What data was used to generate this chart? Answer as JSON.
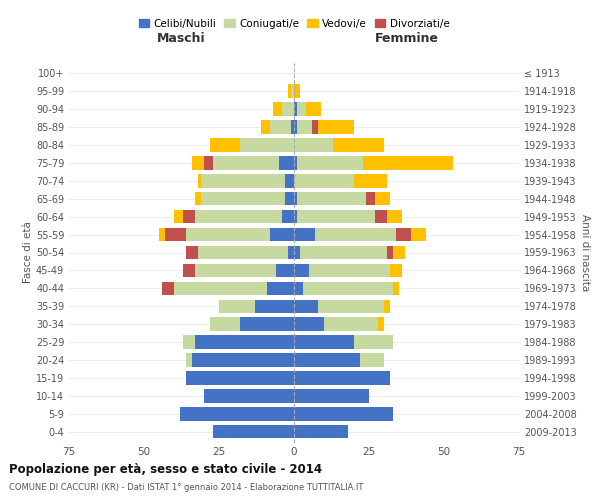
{
  "age_groups": [
    "0-4",
    "5-9",
    "10-14",
    "15-19",
    "20-24",
    "25-29",
    "30-34",
    "35-39",
    "40-44",
    "45-49",
    "50-54",
    "55-59",
    "60-64",
    "65-69",
    "70-74",
    "75-79",
    "80-84",
    "85-89",
    "90-94",
    "95-99",
    "100+"
  ],
  "birth_years": [
    "2009-2013",
    "2004-2008",
    "1999-2003",
    "1994-1998",
    "1989-1993",
    "1984-1988",
    "1979-1983",
    "1974-1978",
    "1969-1973",
    "1964-1968",
    "1959-1963",
    "1954-1958",
    "1949-1953",
    "1944-1948",
    "1939-1943",
    "1934-1938",
    "1929-1933",
    "1924-1928",
    "1919-1923",
    "1914-1918",
    "≤ 1913"
  ],
  "maschi": {
    "celibi": [
      27,
      38,
      30,
      36,
      34,
      33,
      18,
      13,
      9,
      6,
      2,
      8,
      4,
      3,
      3,
      5,
      0,
      1,
      0,
      0,
      0
    ],
    "coniugati": [
      0,
      0,
      0,
      0,
      2,
      4,
      10,
      12,
      31,
      27,
      30,
      28,
      29,
      28,
      28,
      22,
      18,
      7,
      4,
      1,
      0
    ],
    "vedovi": [
      0,
      0,
      0,
      0,
      0,
      0,
      0,
      0,
      0,
      0,
      0,
      2,
      3,
      2,
      1,
      4,
      10,
      3,
      3,
      1,
      0
    ],
    "divorziati": [
      0,
      0,
      0,
      0,
      0,
      0,
      0,
      0,
      4,
      4,
      4,
      7,
      4,
      0,
      0,
      3,
      0,
      0,
      0,
      0,
      0
    ]
  },
  "femmine": {
    "nubili": [
      18,
      33,
      25,
      32,
      22,
      20,
      10,
      8,
      3,
      5,
      2,
      7,
      1,
      1,
      0,
      1,
      0,
      1,
      1,
      0,
      0
    ],
    "coniugate": [
      0,
      0,
      0,
      0,
      8,
      13,
      18,
      22,
      30,
      27,
      29,
      27,
      26,
      23,
      20,
      22,
      13,
      5,
      3,
      0,
      0
    ],
    "vedove": [
      0,
      0,
      0,
      0,
      0,
      0,
      2,
      2,
      2,
      4,
      4,
      5,
      5,
      5,
      11,
      30,
      17,
      12,
      5,
      2,
      0
    ],
    "divorziate": [
      0,
      0,
      0,
      0,
      0,
      0,
      0,
      0,
      0,
      0,
      2,
      5,
      4,
      3,
      0,
      0,
      0,
      2,
      0,
      0,
      0
    ]
  },
  "colors": {
    "celibi_nubili": "#4472c4",
    "coniugati_e": "#c5d9a0",
    "vedovi_e": "#ffc000",
    "divorziati_e": "#c0504d"
  },
  "title": "Popolazione per età, sesso e stato civile - 2014",
  "subtitle": "COMUNE DI CACCURI (KR) - Dati ISTAT 1° gennaio 2014 - Elaborazione TUTTITALIA.IT",
  "xlabel_left": "Maschi",
  "xlabel_right": "Femmine",
  "ylabel_left": "Fasce di età",
  "ylabel_right": "Anni di nascita",
  "xlim": 75,
  "legend_labels": [
    "Celibi/Nubili",
    "Coniugati/e",
    "Vedovi/e",
    "Divorziati/e"
  ],
  "bar_height": 0.75
}
